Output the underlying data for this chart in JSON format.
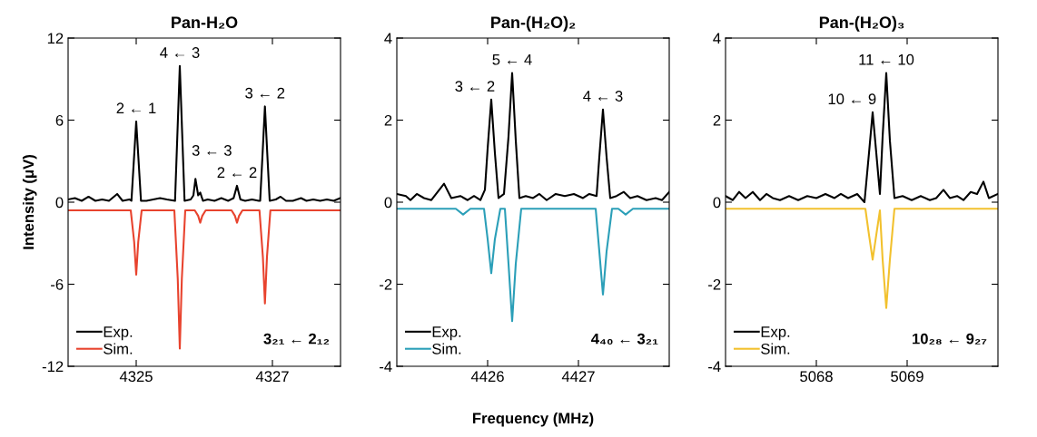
{
  "chart_data": [
    {
      "type": "line",
      "title": "Pan-H₂O",
      "ylabel": "Intensity (μV)",
      "xlim": [
        4324,
        4328
      ],
      "ylim": [
        -12,
        12
      ],
      "xticks": [
        4325,
        4327
      ],
      "yticks": [
        -12,
        -6,
        0,
        6,
        12
      ],
      "legend": "bottom left",
      "series": [
        {
          "name": "Exp.",
          "color": "#000000",
          "x": [
            4324.0,
            4324.1,
            4324.2,
            4324.3,
            4324.4,
            4324.5,
            4324.6,
            4324.72,
            4324.8,
            4324.9,
            4324.93,
            4324.965,
            4325.0,
            4325.035,
            4325.07,
            4325.15,
            4325.25,
            4325.35,
            4325.45,
            4325.57,
            4325.605,
            4325.64,
            4325.675,
            4325.71,
            4325.8,
            4325.84,
            4325.87,
            4325.91,
            4325.94,
            4325.98,
            4326.05,
            4326.15,
            4326.25,
            4326.35,
            4326.43,
            4326.48,
            4326.53,
            4326.6,
            4326.7,
            4326.8,
            4326.82,
            4326.855,
            4326.89,
            4326.925,
            4326.96,
            4327.05,
            4327.12,
            4327.2,
            4327.3,
            4327.42,
            4327.5,
            4327.6,
            4327.7,
            4327.8,
            4327.9,
            4328.0
          ],
          "values": [
            0.2,
            0.3,
            0.1,
            0.4,
            0.1,
            0.2,
            0.1,
            0.6,
            0.1,
            0.2,
            0.1,
            3.0,
            5.9,
            3.0,
            0.1,
            0.1,
            0.2,
            0.3,
            0.2,
            0.1,
            5.0,
            9.96,
            5.0,
            0.1,
            0.2,
            0.5,
            1.7,
            0.5,
            0.7,
            0.1,
            0.2,
            0.1,
            0.3,
            0.1,
            0.3,
            1.2,
            0.2,
            0.1,
            0.2,
            0.1,
            0.1,
            3.5,
            7.0,
            3.5,
            0.1,
            0.2,
            0.4,
            0.1,
            0.1,
            0.3,
            0.1,
            0.2,
            0.1,
            0.2,
            0.1,
            0.3
          ]
        },
        {
          "name": "Sim.",
          "color": "#e8432e",
          "x": [
            4324.0,
            4324.92,
            4324.97,
            4325.0,
            4325.03,
            4325.08,
            4325.56,
            4325.61,
            4325.64,
            4325.67,
            4325.72,
            4325.86,
            4325.91,
            4325.94,
            4325.97,
            4326.02,
            4326.4,
            4326.45,
            4326.48,
            4326.51,
            4326.56,
            4326.81,
            4326.86,
            4326.89,
            4326.92,
            4326.97,
            4328.0
          ],
          "values": [
            -0.6,
            -0.6,
            -2.9,
            -5.3,
            -2.9,
            -0.6,
            -0.6,
            -5.6,
            -10.7,
            -5.6,
            -0.6,
            -0.6,
            -1.0,
            -1.5,
            -1.0,
            -0.6,
            -0.6,
            -1.0,
            -1.5,
            -1.0,
            -0.6,
            -0.6,
            -4.0,
            -7.4,
            -4.0,
            -0.6,
            -0.6
          ]
        }
      ],
      "annotations": [
        {
          "text": "2 ← 1",
          "x": 4325.0,
          "y": 5.9
        },
        {
          "text": "4 ← 3",
          "x": 4325.64,
          "y": 9.96
        },
        {
          "text": "3 ← 3",
          "x": 4325.87,
          "y": 1.7
        },
        {
          "text": "2 ← 2",
          "x": 4326.48,
          "y": 1.2
        },
        {
          "text": "3 ← 2",
          "x": 4326.89,
          "y": 7.0
        },
        "3₂₁ ← 2₁₂"
      ]
    },
    {
      "type": "line",
      "title": "Pan-(H₂O)₂",
      "xlabel": "Frequency (MHz)",
      "xlim": [
        4425,
        4428
      ],
      "ylim": [
        -4,
        4
      ],
      "xticks": [
        4426,
        4427
      ],
      "yticks": [
        -4,
        -2,
        0,
        2,
        4
      ],
      "legend": "bottom left",
      "series": [
        {
          "name": "Exp.",
          "color": "#000000",
          "x": [
            4425.0,
            4425.1,
            4425.15,
            4425.22,
            4425.3,
            4425.38,
            4425.45,
            4425.52,
            4425.6,
            4425.7,
            4425.78,
            4425.85,
            4425.92,
            4425.97,
            4426.0,
            4426.04,
            4426.08,
            4426.12,
            4426.18,
            4426.23,
            4426.27,
            4426.31,
            4426.35,
            4426.42,
            4426.5,
            4426.57,
            4426.65,
            4426.75,
            4426.85,
            4426.95,
            4427.05,
            4427.12,
            4427.2,
            4427.23,
            4427.27,
            4427.31,
            4427.35,
            4427.42,
            4427.5,
            4427.57,
            4427.65,
            4427.75,
            4427.85,
            4427.92,
            4428.0
          ],
          "values": [
            0.2,
            0.15,
            0.05,
            0.2,
            0.1,
            0.05,
            0.25,
            0.45,
            0.1,
            0.15,
            0.05,
            0.15,
            0.05,
            0.3,
            1.3,
            2.5,
            1.2,
            0.1,
            0.2,
            1.6,
            3.15,
            1.5,
            0.1,
            0.15,
            0.1,
            0.2,
            0.05,
            0.2,
            0.15,
            0.2,
            0.1,
            0.2,
            0.15,
            1.1,
            2.26,
            1.1,
            0.1,
            0.15,
            0.25,
            0.1,
            0.15,
            0.05,
            0.1,
            0.05,
            0.25
          ]
        },
        {
          "name": "Sim.",
          "color": "#2b9fb8",
          "x": [
            4425.0,
            4425.65,
            4425.73,
            4425.81,
            4425.96,
            4426.0,
            4426.04,
            4426.08,
            4426.14,
            4426.19,
            4426.23,
            4426.27,
            4426.31,
            4426.37,
            4427.19,
            4427.23,
            4427.27,
            4427.31,
            4427.37,
            4427.44,
            4427.52,
            4427.6,
            4428.0
          ],
          "values": [
            -0.16,
            -0.16,
            -0.3,
            -0.16,
            -0.16,
            -0.9,
            -1.73,
            -0.9,
            -0.16,
            -0.16,
            -1.5,
            -2.9,
            -1.5,
            -0.16,
            -0.16,
            -1.2,
            -2.25,
            -1.2,
            -0.16,
            -0.16,
            -0.3,
            -0.16,
            -0.16
          ]
        }
      ],
      "annotations": [
        {
          "text": "3 ← 2",
          "x": 4426.04,
          "y": 2.5
        },
        {
          "text": "5 ← 4",
          "x": 4426.27,
          "y": 3.15
        },
        {
          "text": "4 ← 3",
          "x": 4427.27,
          "y": 2.26
        },
        "4₄₀ ← 3₂₁"
      ]
    },
    {
      "type": "line",
      "title": "Pan-(H₂O)₃",
      "xlim": [
        5067,
        5070
      ],
      "ylim": [
        -4,
        4
      ],
      "xticks": [
        5068,
        5069
      ],
      "yticks": [
        -4,
        -2,
        0,
        2,
        4
      ],
      "legend": "bottom left",
      "series": [
        {
          "name": "Exp.",
          "color": "#000000",
          "x": [
            5067.0,
            5067.08,
            5067.15,
            5067.22,
            5067.3,
            5067.38,
            5067.45,
            5067.52,
            5067.6,
            5067.7,
            5067.8,
            5067.9,
            5068.0,
            5068.1,
            5068.2,
            5068.27,
            5068.35,
            5068.45,
            5068.53,
            5068.58,
            5068.62,
            5068.66,
            5068.7,
            5068.73,
            5068.77,
            5068.81,
            5068.86,
            5068.95,
            5069.05,
            5069.15,
            5069.25,
            5069.32,
            5069.4,
            5069.47,
            5069.55,
            5069.62,
            5069.7,
            5069.77,
            5069.84,
            5069.9,
            5070.0
          ],
          "values": [
            0.15,
            0.05,
            0.25,
            0.1,
            0.25,
            0.05,
            0.2,
            0.1,
            0.05,
            0.15,
            0.05,
            0.15,
            0.1,
            0.2,
            0.1,
            0.2,
            0.1,
            0.2,
            0.0,
            1.2,
            2.19,
            1.2,
            0.2,
            1.6,
            3.15,
            1.5,
            0.1,
            0.15,
            0.05,
            0.15,
            0.05,
            0.1,
            0.3,
            0.1,
            0.15,
            0.05,
            0.25,
            0.2,
            0.5,
            0.1,
            0.2
          ]
        },
        {
          "name": "Sim.",
          "color": "#f2c12e",
          "x": [
            5067.0,
            5068.54,
            5068.58,
            5068.62,
            5068.66,
            5068.7,
            5068.73,
            5068.77,
            5068.81,
            5068.86,
            5070.0
          ],
          "values": [
            -0.16,
            -0.16,
            -0.8,
            -1.4,
            -0.8,
            -0.2,
            -1.4,
            -2.58,
            -1.4,
            -0.16,
            -0.16
          ]
        }
      ],
      "annotations": [
        {
          "text": "10 ← 9",
          "x": 5068.62,
          "y": 2.19
        },
        {
          "text": "11 ← 10",
          "x": 5068.77,
          "y": 3.15
        },
        "10₂₈ ← 9₂₇"
      ]
    }
  ]
}
